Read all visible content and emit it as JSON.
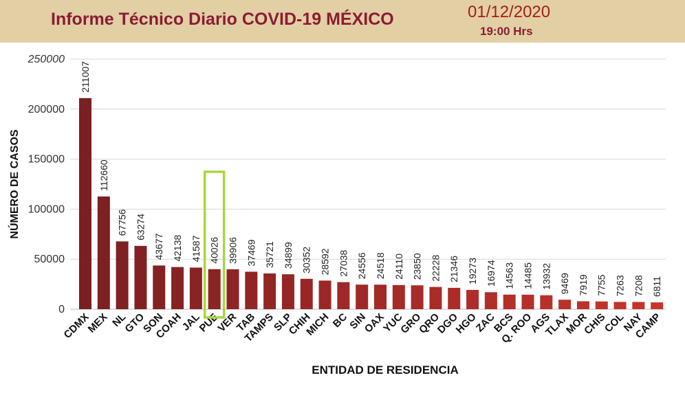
{
  "header": {
    "title": "Informe Técnico Diario COVID-19 MÉXICO",
    "date": "01/12/2020",
    "time": "19:00 Hrs"
  },
  "colors": {
    "header_bg": "#e2cfa4",
    "title": "#8a1c33",
    "bar_dark": "#7a1f22",
    "bar_light": "#c8342c",
    "highlight_box": "#a8d83a"
  },
  "chart_data": {
    "type": "bar",
    "xlabel": "ENTIDAD DE RESIDENCIA",
    "ylabel": "NÚMERO DE CASOS",
    "ylim": [
      0,
      250000
    ],
    "yticks": [
      "0",
      "50000",
      "100000",
      "150000",
      "200000",
      "250000"
    ],
    "grid": true,
    "highlighted_category": "PUE",
    "categories": [
      "CDMX",
      "MEX",
      "NL",
      "GTO",
      "SON",
      "COAH",
      "JAL",
      "PUE",
      "VER",
      "TAB",
      "TAMPS",
      "SLP",
      "CHIH",
      "MICH",
      "BC",
      "SIN",
      "OAX",
      "YUC",
      "GRO",
      "QRO",
      "DGO",
      "HGO",
      "ZAC",
      "BCS",
      "Q. ROO",
      "AGS",
      "TLAX",
      "MOR",
      "CHIS",
      "COL",
      "NAY",
      "CAMP"
    ],
    "values": [
      211007,
      112660,
      67756,
      63274,
      43677,
      42138,
      41587,
      40026,
      39906,
      37469,
      35721,
      34899,
      30352,
      28592,
      27038,
      24556,
      24518,
      24110,
      23850,
      22228,
      21346,
      19273,
      16974,
      14563,
      14485,
      13932,
      9469,
      7919,
      7755,
      7263,
      7208,
      6811
    ],
    "labels": [
      "211007",
      "112660",
      "67756",
      "63274",
      "43677",
      "42138",
      "41587",
      "40026",
      "39906",
      "37469",
      "35721",
      "34899",
      "30352",
      "28592",
      "27038",
      "24556",
      "24518",
      "24110",
      "23850",
      "22228",
      "21346",
      "19273",
      "16974",
      "14563",
      "14485",
      "13932",
      "9469",
      "7919",
      "7755",
      "7263",
      "7208",
      "6811"
    ]
  }
}
